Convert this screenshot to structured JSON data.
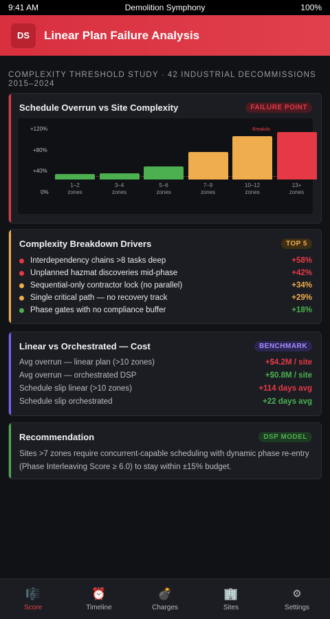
{
  "status": {
    "time": "9:41 AM",
    "app": "Demolition Symphony",
    "battery": "100%"
  },
  "header": {
    "logo": "DS",
    "title": "Linear Plan Failure Analysis"
  },
  "subtitle": "COMPLEXITY THRESHOLD STUDY · 42 INDUSTRIAL DECOMMISSIONS 2015–2024",
  "chart_card": {
    "title": "Schedule Overrun vs Site Complexity",
    "badge": "FAILURE POINT",
    "break_label": "Breakdo",
    "y_ticks": [
      "+120%",
      "+80%",
      "+40%",
      "0%"
    ]
  },
  "chart_data": {
    "type": "bar",
    "title": "Schedule Overrun vs Site Complexity",
    "categories": [
      "1–2 zones",
      "3–4 zones",
      "5–6 zones",
      "7–9 zones",
      "10–12 zones",
      "13+ zones"
    ],
    "category_lines": [
      [
        "1–2",
        "zones"
      ],
      [
        "3–4",
        "zones"
      ],
      [
        "5–6",
        "zones"
      ],
      [
        "7–9",
        "zones"
      ],
      [
        "10–12",
        "zones"
      ],
      [
        "13+",
        "zones"
      ]
    ],
    "values": [
      12,
      14,
      28,
      60,
      95,
      103
    ],
    "colors": [
      "#4caf50",
      "#4caf50",
      "#4caf50",
      "#f0ad4e",
      "#f0ad4e",
      "#e63946"
    ],
    "ylim": [
      0,
      120
    ],
    "threshold": 8,
    "grid": false
  },
  "drivers_card": {
    "title": "Complexity Breakdown Drivers",
    "badge": "TOP 5",
    "items": [
      {
        "label": "Interdependency chains >8 tasks deep",
        "value": "+58%",
        "color": "#e63946"
      },
      {
        "label": "Unplanned hazmat discoveries mid-phase",
        "value": "+42%",
        "color": "#e63946"
      },
      {
        "label": "Sequential-only contractor lock (no parallel)",
        "value": "+34%",
        "color": "#f0ad4e"
      },
      {
        "label": "Single critical path — no recovery track",
        "value": "+29%",
        "color": "#f0ad4e"
      },
      {
        "label": "Phase gates with no compliance buffer",
        "value": "+18%",
        "color": "#4caf50"
      }
    ]
  },
  "cost_card": {
    "title": "Linear vs Orchestrated — Cost",
    "badge": "BENCHMARK",
    "rows": [
      {
        "label": "Avg overrun — linear plan (>10 zones)",
        "value": "+$4.2M / site",
        "color": "#e63946"
      },
      {
        "label": "Avg overrun — orchestrated DSP",
        "value": "+$0.8M / site",
        "color": "#4caf50"
      },
      {
        "label": "Schedule slip linear (>10 zones)",
        "value": "+114 days avg",
        "color": "#e63946"
      },
      {
        "label": "Schedule slip orchestrated",
        "value": "+22 days avg",
        "color": "#4caf50"
      }
    ]
  },
  "rec_card": {
    "title": "Recommendation",
    "badge": "DSP MODEL",
    "text": "Sites >7 zones require concurrent-capable scheduling with dynamic phase re-entry (Phase Interleaving Score ≥ 6.0) to stay within ±15% budget."
  },
  "tabs": [
    {
      "label": "Score",
      "icon": "🎼",
      "active": true
    },
    {
      "label": "Timeline",
      "icon": "⏰",
      "active": false
    },
    {
      "label": "Charges",
      "icon": "💣",
      "active": false
    },
    {
      "label": "Sites",
      "icon": "🏢",
      "active": false
    },
    {
      "label": "Settings",
      "icon": "⚙",
      "active": false
    }
  ]
}
